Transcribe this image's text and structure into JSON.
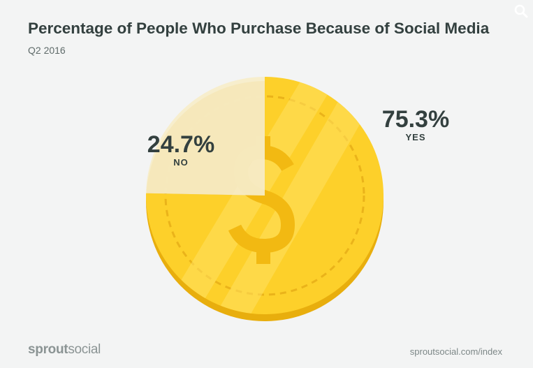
{
  "header": {
    "title": "Percentage of People Who Purchase Because of Social Media",
    "subtitle": "Q2 2016"
  },
  "icons": {
    "search": "search-icon"
  },
  "colors": {
    "coin_gold": "#fdd02a",
    "coin_rim": "#e8ae0d",
    "coin_highlight": "#ffdc55",
    "no_slice": "#f6edc9",
    "text_dark": "#33403f",
    "background": "#f3f4f4"
  },
  "chart_data": {
    "type": "pie",
    "categories": [
      "YES",
      "NO"
    ],
    "values": [
      75.3,
      24.7
    ],
    "labels": [
      "75.3%",
      "24.7%"
    ],
    "title": "Percentage of People Who Purchase Because of Social Media",
    "subtitle": "Q2 2016",
    "legend": "none"
  },
  "footer": {
    "logo_part1": "sprout",
    "logo_part2": "social",
    "source": "sproutsocial.com/index"
  }
}
